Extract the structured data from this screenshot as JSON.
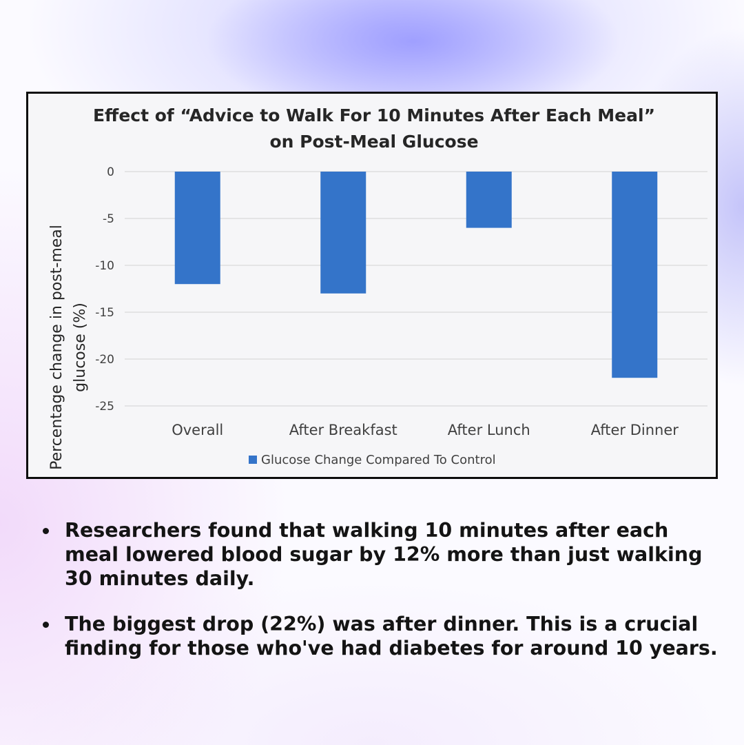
{
  "colors": {
    "bar": "#3474c9",
    "grid": "#d9d9d9",
    "axis_text": "#404040"
  },
  "chart_data": {
    "type": "bar",
    "title_lines": [
      "Effect of “Advice to Walk For 10 Minutes After Each Meal”",
      "on Post-Meal Glucose"
    ],
    "categories": [
      "Overall",
      "After Breakfast",
      "After Lunch",
      "After Dinner"
    ],
    "series": [
      {
        "name": "Glucose Change Compared To Control",
        "values": [
          -12,
          -13,
          -6,
          -22
        ]
      }
    ],
    "ylabel_lines": [
      "Percentage change in post-meal",
      "glucose (%)"
    ],
    "xlabel": "",
    "ylim": [
      -25,
      0
    ],
    "yticks": [
      0,
      -5,
      -10,
      -15,
      -20,
      -25
    ],
    "grid": true,
    "legend_position": "bottom"
  },
  "bullets": [
    {
      "text": "Researchers found that walking 10 minutes after each meal lowered blood sugar by 12% more than just walking 30 minutes daily."
    },
    {
      "text": "The biggest drop (22%) was after dinner. This is a crucial finding for those who've had diabetes for around 10 years."
    }
  ]
}
